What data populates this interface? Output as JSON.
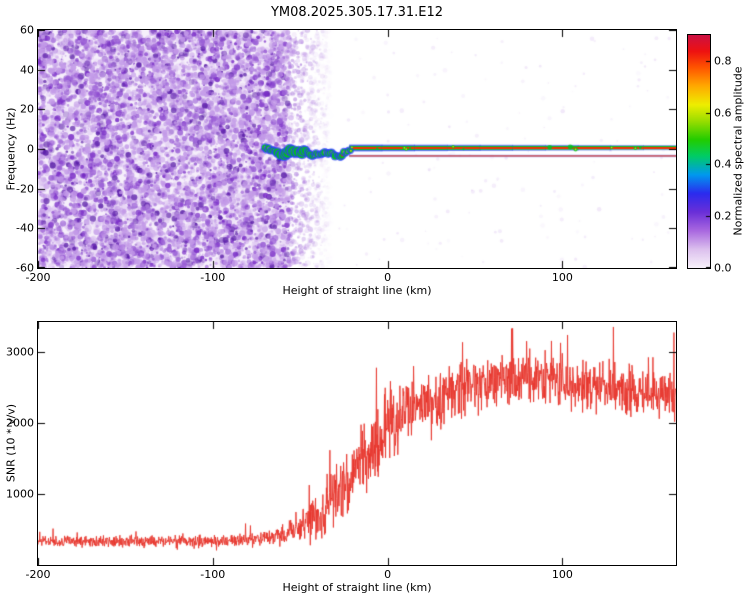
{
  "figure": {
    "title": "YM08.2025.305.17.31.E12",
    "background": "#ffffff"
  },
  "chart_data": [
    {
      "type": "heatmap",
      "title": "YM08.2025.305.17.31.E12",
      "xlabel": "Height of straight line (km)",
      "ylabel": "Frequency (Hz)",
      "xlim": [
        -200,
        165
      ],
      "ylim": [
        -60,
        60
      ],
      "xticks": [
        -200,
        -100,
        0,
        100
      ],
      "yticks": [
        -60,
        -40,
        -20,
        0,
        20,
        40,
        60
      ],
      "grid": false,
      "colorbar": {
        "label": "Normalized spectral amplitude",
        "range": [
          0,
          0.9
        ],
        "ticks": [
          0,
          0.2,
          0.4,
          0.6,
          0.8
        ],
        "tick_labels": [
          "0.0",
          "0.2",
          "0.4",
          "0.6",
          "0.8"
        ],
        "stops": [
          [
            0,
            "#f8f2fb"
          ],
          [
            0.08,
            "#dcc0ee"
          ],
          [
            0.16,
            "#a968e0"
          ],
          [
            0.24,
            "#6a2fd8"
          ],
          [
            0.32,
            "#2b2bee"
          ],
          [
            0.4,
            "#0099ee"
          ],
          [
            0.48,
            "#00cc66"
          ],
          [
            0.55,
            "#22cc00"
          ],
          [
            0.63,
            "#99dd00"
          ],
          [
            0.7,
            "#eeee00"
          ],
          [
            0.78,
            "#ffaa00"
          ],
          [
            0.86,
            "#ff5500"
          ],
          [
            0.93,
            "#ee1111"
          ],
          [
            1,
            "#cc1144"
          ]
        ]
      },
      "noise_field": {
        "x_range": [
          -200,
          -56
        ],
        "fade_x_range": [
          -56,
          -32
        ],
        "sparse_x_range": [
          -32,
          165
        ],
        "dot_colors": [
          "#e2ccf2",
          "#c39ae8",
          "#9a5fd6",
          "#7b2fc8",
          "#5a1ea8"
        ],
        "description": "Dense purple speckle noise over full frequency band left of -56 km, fading to sparse faint dots toward the right"
      },
      "signal_trace": {
        "frequency_hz": 0,
        "onset_km": -70,
        "straight_from_km": -22,
        "end_km": 165,
        "secondary_line_hz": -3.5,
        "core_color": "#ff2a00",
        "mid_color": "#00c31e",
        "halo_color": "#2b3cff",
        "accent_color": "#ffe000",
        "description": "High-amplitude echo trace near 0 Hz: scattered wiggly blobs from -70 to -22 km, then a straight rainbow-edged line with red core to the right edge, plus a thinner dark-red line near -3.5 Hz"
      }
    },
    {
      "type": "line",
      "title": "",
      "xlabel": "Height of straight line (km)",
      "ylabel": "SNR (10 * v/v)",
      "xlim": [
        -200,
        165
      ],
      "ylim": [
        0,
        3420
      ],
      "xticks": [
        -200,
        -100,
        0,
        100
      ],
      "yticks": [
        1000,
        2000,
        3000
      ],
      "grid": false,
      "color": "#e8352c",
      "series_name": "SNR",
      "envelope_format": [
        "x_km",
        "mean",
        "spread"
      ],
      "envelope": [
        [
          -200,
          330,
          110
        ],
        [
          -150,
          330,
          110
        ],
        [
          -120,
          335,
          115
        ],
        [
          -90,
          340,
          120
        ],
        [
          -70,
          360,
          140
        ],
        [
          -60,
          430,
          210
        ],
        [
          -50,
          560,
          330
        ],
        [
          -40,
          720,
          450
        ],
        [
          -30,
          950,
          600
        ],
        [
          -20,
          1250,
          750
        ],
        [
          -10,
          1550,
          850
        ],
        [
          0,
          1950,
          800
        ],
        [
          10,
          2150,
          700
        ],
        [
          20,
          2320,
          620
        ],
        [
          40,
          2480,
          560
        ],
        [
          60,
          2570,
          540
        ],
        [
          80,
          2620,
          520
        ],
        [
          100,
          2570,
          520
        ],
        [
          120,
          2520,
          500
        ],
        [
          140,
          2470,
          490
        ],
        [
          165,
          2420,
          480
        ]
      ],
      "description": "Noisy SNR trace: flat noise floor near 330 left of -60 km, steep noisy rise between -50 and +10 km, plateau near 2500-2600 with spikes to 3300 on the right"
    }
  ]
}
